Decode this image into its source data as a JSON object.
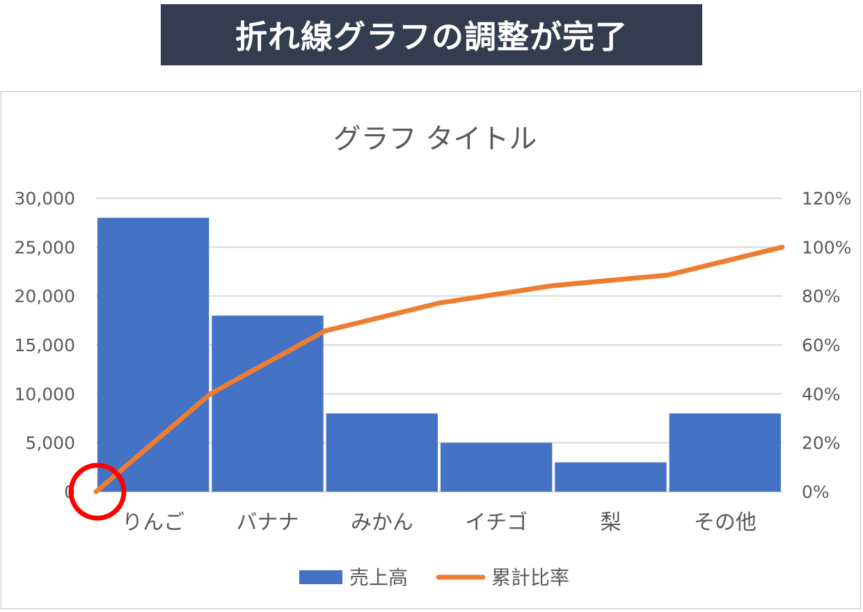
{
  "banner": {
    "title": "折れ線グラフの調整が完了"
  },
  "chart_data": {
    "type": "bar",
    "title": "グラフ タイトル",
    "categories": [
      "りんご",
      "バナナ",
      "みかん",
      "イチゴ",
      "梨",
      "その他"
    ],
    "series": [
      {
        "name": "売上高",
        "type": "bar",
        "axis": "left",
        "values": [
          28000,
          18000,
          8000,
          5000,
          3000,
          8000
        ],
        "color": "#4472c4"
      },
      {
        "name": "累計比率",
        "type": "line",
        "axis": "right",
        "x": [
          0,
          1,
          2,
          3,
          4,
          5,
          6
        ],
        "values": [
          0,
          0.4,
          0.6571,
          0.7714,
          0.8429,
          0.8857,
          1.0
        ],
        "color": "#ed7d31"
      }
    ],
    "y_left": {
      "range": [
        0,
        30000
      ],
      "ticks": [
        "0",
        "5,000",
        "10,000",
        "15,000",
        "20,000",
        "25,000",
        "30,000"
      ]
    },
    "y_right": {
      "range": [
        0,
        1.2
      ],
      "ticks": [
        "0%",
        "20%",
        "40%",
        "60%",
        "80%",
        "100%",
        "120%"
      ]
    },
    "grid": true,
    "legend": {
      "position": "bottom",
      "items": [
        "売上高",
        "累計比率"
      ]
    },
    "annotation": {
      "shape": "circle",
      "color": "#ff0000",
      "target": "line origin (0%)"
    }
  }
}
